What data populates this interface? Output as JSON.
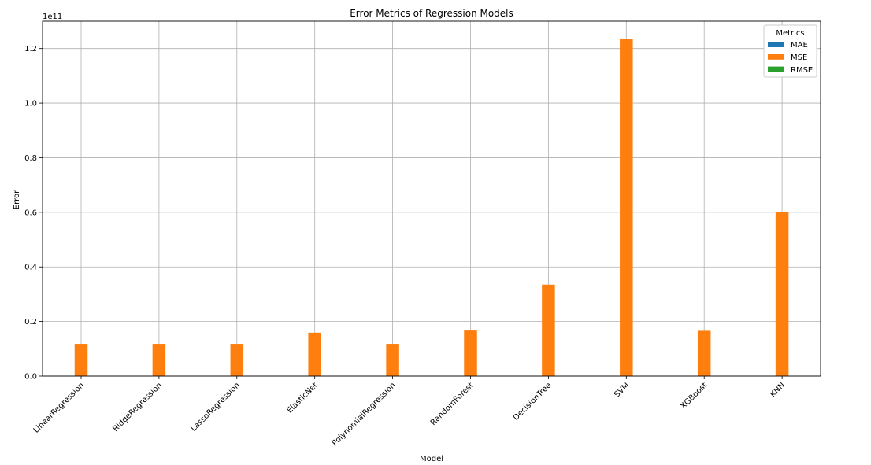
{
  "chart_data": {
    "type": "bar",
    "title": "Error Metrics of Regression Models",
    "xlabel": "Model",
    "ylabel": "Error",
    "offset_text": "1e11",
    "categories": [
      "LinearRegression",
      "RidgeRegression",
      "LassoRegression",
      "ElasticNet",
      "PolynomialRegression",
      "RandomForest",
      "DecisionTree",
      "SVM",
      "XGBoost",
      "KNN"
    ],
    "series": [
      {
        "name": "MAE",
        "color": "#1f77b4",
        "values": [
          100000,
          100000,
          100000,
          100000,
          100000,
          100000,
          100000,
          100000,
          100000,
          100000
        ]
      },
      {
        "name": "MSE",
        "color": "#ff7f0e",
        "values": [
          11800000000,
          11800000000,
          11800000000,
          15900000000,
          11800000000,
          16700000000,
          33500000000,
          123500000000,
          16600000000,
          60200000000
        ]
      },
      {
        "name": "RMSE",
        "color": "#2ca02c",
        "values": [
          100000,
          100000,
          100000,
          100000,
          100000,
          100000,
          100000,
          100000,
          100000,
          100000
        ]
      }
    ],
    "ylim": [
      0,
      130000000000
    ],
    "yticks": [
      0,
      20000000000,
      40000000000,
      60000000000,
      80000000000,
      100000000000,
      120000000000
    ],
    "ytick_labels": [
      "0.0",
      "0.2",
      "0.4",
      "0.6",
      "0.8",
      "1.0",
      "1.2"
    ],
    "legend": {
      "title": "Metrics",
      "placement": "top-right"
    },
    "grid": true
  }
}
